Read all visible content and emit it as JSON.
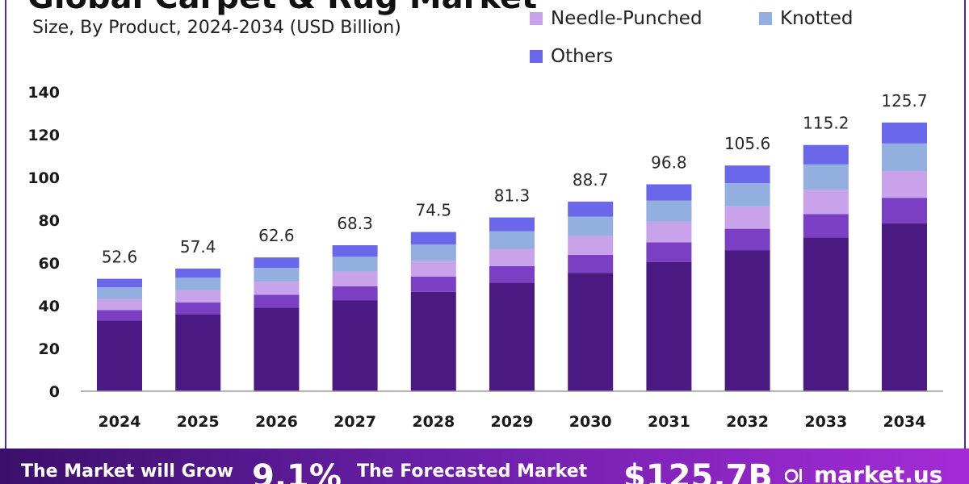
{
  "header": {
    "title": "Global Carpet & Rug Market",
    "subtitle": "Size, By Product, 2024-2034 (USD Billion)"
  },
  "legend": [
    {
      "name": "Needle-Punched",
      "color": "#c9a2ec"
    },
    {
      "name": "Knotted",
      "color": "#93afe0"
    },
    {
      "name": "Others",
      "color": "#6a67ea"
    }
  ],
  "chart_data": {
    "type": "bar",
    "stacked": true,
    "title": "Global Carpet & Rug Market",
    "subtitle": "Size, By Product, 2024-2034 (USD Billion)",
    "categories": [
      "2024",
      "2025",
      "2026",
      "2027",
      "2028",
      "2029",
      "2030",
      "2031",
      "2032",
      "2033",
      "2034"
    ],
    "ylim": [
      0,
      140
    ],
    "yticks": [
      0,
      20,
      40,
      60,
      80,
      100,
      120,
      140
    ],
    "grid": false,
    "legend_position": "top-right",
    "totals": [
      52.6,
      57.4,
      62.6,
      68.3,
      74.5,
      81.3,
      88.7,
      96.8,
      105.6,
      115.2,
      125.7
    ],
    "total_labels": [
      "52.6",
      "57.4",
      "62.6",
      "68.3",
      "74.5",
      "81.3",
      "88.7",
      "96.8",
      "105.6",
      "115.2",
      "125.7"
    ],
    "series": [
      {
        "color": "#4a1a82",
        "values": [
          33.0,
          36.0,
          39.1,
          42.6,
          46.5,
          50.8,
          55.4,
          60.5,
          66.0,
          72.0,
          78.6
        ]
      },
      {
        "color": "#7a3fc2",
        "values": [
          5.0,
          5.5,
          6.0,
          6.5,
          7.1,
          7.7,
          8.4,
          9.2,
          10.0,
          10.9,
          11.9
        ]
      },
      {
        "name": "Needle-Punched",
        "color": "#c9a2ec",
        "values": [
          5.2,
          5.7,
          6.2,
          6.8,
          7.4,
          8.1,
          8.8,
          9.6,
          10.5,
          11.4,
          12.5
        ]
      },
      {
        "name": "Knotted",
        "color": "#93afe0",
        "values": [
          5.4,
          5.9,
          6.4,
          7.0,
          7.6,
          8.3,
          9.1,
          9.9,
          10.8,
          11.8,
          12.9
        ]
      },
      {
        "name": "Others",
        "color": "#6a67ea",
        "values": [
          4.0,
          4.3,
          4.9,
          5.4,
          5.9,
          6.4,
          7.0,
          7.6,
          8.3,
          9.1,
          9.8
        ]
      }
    ]
  },
  "footer": {
    "grow_text": "The Market will Grow",
    "cagr_value": "9.1%",
    "forecast_text": "The Forecasted Market",
    "forecast_value": "$125.7B",
    "brand": "market.us"
  }
}
